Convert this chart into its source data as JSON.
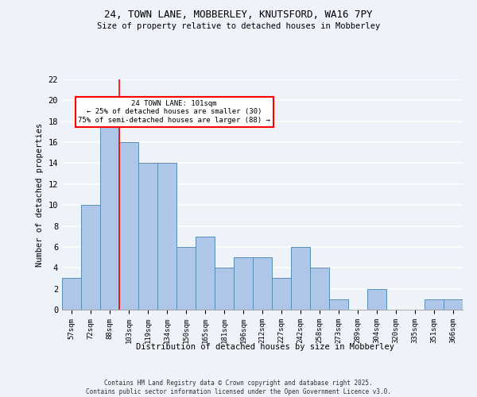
{
  "title1": "24, TOWN LANE, MOBBERLEY, KNUTSFORD, WA16 7PY",
  "title2": "Size of property relative to detached houses in Mobberley",
  "xlabel": "Distribution of detached houses by size in Mobberley",
  "ylabel": "Number of detached properties",
  "categories": [
    "57sqm",
    "72sqm",
    "88sqm",
    "103sqm",
    "119sqm",
    "134sqm",
    "150sqm",
    "165sqm",
    "181sqm",
    "196sqm",
    "212sqm",
    "227sqm",
    "242sqm",
    "258sqm",
    "273sqm",
    "289sqm",
    "304sqm",
    "320sqm",
    "335sqm",
    "351sqm",
    "366sqm"
  ],
  "values": [
    3,
    10,
    18,
    16,
    14,
    14,
    6,
    7,
    4,
    5,
    5,
    3,
    6,
    4,
    1,
    0,
    2,
    0,
    0,
    1,
    1
  ],
  "bar_color": "#aec6e8",
  "bar_edge_color": "#5b8db8",
  "red_line_index": 3,
  "annotation_text": "24 TOWN LANE: 101sqm\n← 25% of detached houses are smaller (30)\n75% of semi-detached houses are larger (88) →",
  "annotation_box_color": "white",
  "annotation_box_edge_color": "red",
  "ylim": [
    0,
    22
  ],
  "yticks": [
    0,
    2,
    4,
    6,
    8,
    10,
    12,
    14,
    16,
    18,
    20,
    22
  ],
  "bg_color": "#eef2f9",
  "grid_color": "#ffffff",
  "copyright_text": "Contains HM Land Registry data © Crown copyright and database right 2025.\nContains public sector information licensed under the Open Government Licence v3.0."
}
